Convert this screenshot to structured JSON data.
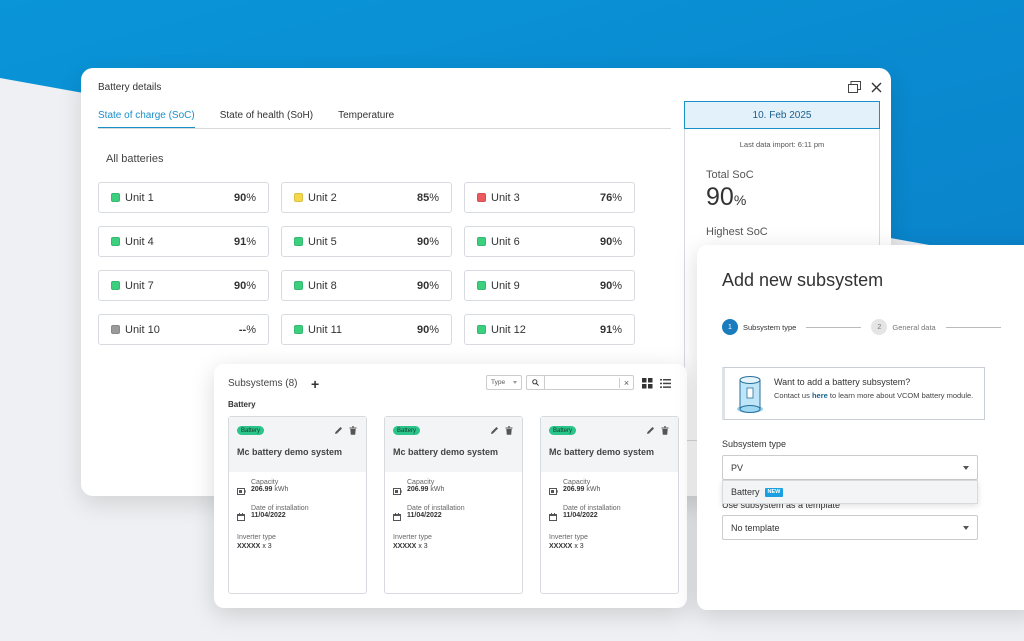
{
  "battery_details": {
    "title": "Battery  details",
    "tabs": [
      {
        "label": "State of charge (SoC)",
        "active": true
      },
      {
        "label": "State of health (SoH)",
        "active": false
      },
      {
        "label": "Temperature",
        "active": false
      }
    ],
    "section_title": "All batteries",
    "units": [
      {
        "name": "Unit 1",
        "value": "90",
        "pct": "%",
        "status": "green"
      },
      {
        "name": "Unit 2",
        "value": "85",
        "pct": "%",
        "status": "yellow"
      },
      {
        "name": "Unit 3",
        "value": "76",
        "pct": "%",
        "status": "red"
      },
      {
        "name": "Unit 4",
        "value": "91",
        "pct": "%",
        "status": "green"
      },
      {
        "name": "Unit 5",
        "value": "90",
        "pct": "%",
        "status": "green"
      },
      {
        "name": "Unit 6",
        "value": "90",
        "pct": "%",
        "status": "green"
      },
      {
        "name": "Unit 7",
        "value": "90",
        "pct": "%",
        "status": "green"
      },
      {
        "name": "Unit 8",
        "value": "90",
        "pct": "%",
        "status": "green"
      },
      {
        "name": "Unit 9",
        "value": "90",
        "pct": "%",
        "status": "green"
      },
      {
        "name": "Unit 10",
        "value": "--",
        "pct": "%",
        "status": "gray"
      },
      {
        "name": "Unit 11",
        "value": "90",
        "pct": "%",
        "status": "green"
      },
      {
        "name": "Unit 12",
        "value": "91",
        "pct": "%",
        "status": "green"
      }
    ],
    "status_colors": {
      "green": "#3ccf7e",
      "yellow": "#f4d84a",
      "red": "#ea5a5f",
      "gray": "#9a9a9a"
    },
    "date_panel": {
      "date": "10. Feb 2025",
      "last_import": "Last data import:  6:11 pm",
      "total_soc_label": "Total SoC",
      "total_soc_value": "90",
      "total_soc_unit": "%",
      "highest_soc_label": "Highest SoC"
    },
    "icons": [
      "restore-window-icon",
      "close-icon"
    ]
  },
  "subsystems": {
    "title": "Subsystems (8)",
    "add_symbol": "+",
    "type_filter": "Type",
    "search_placeholder": "",
    "clear_symbol": "×",
    "section": "Battery",
    "cards": [
      {
        "badge": "Battery",
        "name": "Mc battery demo system",
        "capacity_label": "Capacity",
        "capacity_value": "206.99",
        "capacity_unit": "kWh",
        "date_label": "Date of installation",
        "date_value": "11/04/2022",
        "inverter_label": "Inverter type",
        "inverter_model": "XXXXX",
        "inverter_count": "x 3"
      },
      {
        "badge": "Battery",
        "name": "Mc battery demo system",
        "capacity_label": "Capacity",
        "capacity_value": "206.99",
        "capacity_unit": "kWh",
        "date_label": "Date of installation",
        "date_value": "11/04/2022",
        "inverter_label": "Inverter type",
        "inverter_model": "XXXXX",
        "inverter_count": "x 3"
      },
      {
        "badge": "Battery",
        "name": "Mc battery demo system",
        "capacity_label": "Capacity",
        "capacity_value": "206.99",
        "capacity_unit": "kWh",
        "date_label": "Date of installation",
        "date_value": "11/04/2022",
        "inverter_label": "Inverter type",
        "inverter_model": "XXXXX",
        "inverter_count": "x 3"
      }
    ],
    "badge_color": "#2bc48a"
  },
  "add_subsystem": {
    "title": "Add new subsystem",
    "steps": [
      {
        "num": "1",
        "label": "Subsystem type",
        "active": true
      },
      {
        "num": "2",
        "label": "General data",
        "active": false
      }
    ],
    "info_title": "Want to add a battery subsystem?",
    "info_text_before": "Contact us ",
    "info_link": "here",
    "info_text_after": " to learn more about VCOM battery module.",
    "subsystem_type_label": "Subsystem type",
    "subsystem_type_value": "PV",
    "dropdown_option": "Battery",
    "dropdown_badge": "NEW",
    "template_label": "Use subsystem as a template",
    "template_value": "No template",
    "accent_color": "#1a7bbd"
  }
}
